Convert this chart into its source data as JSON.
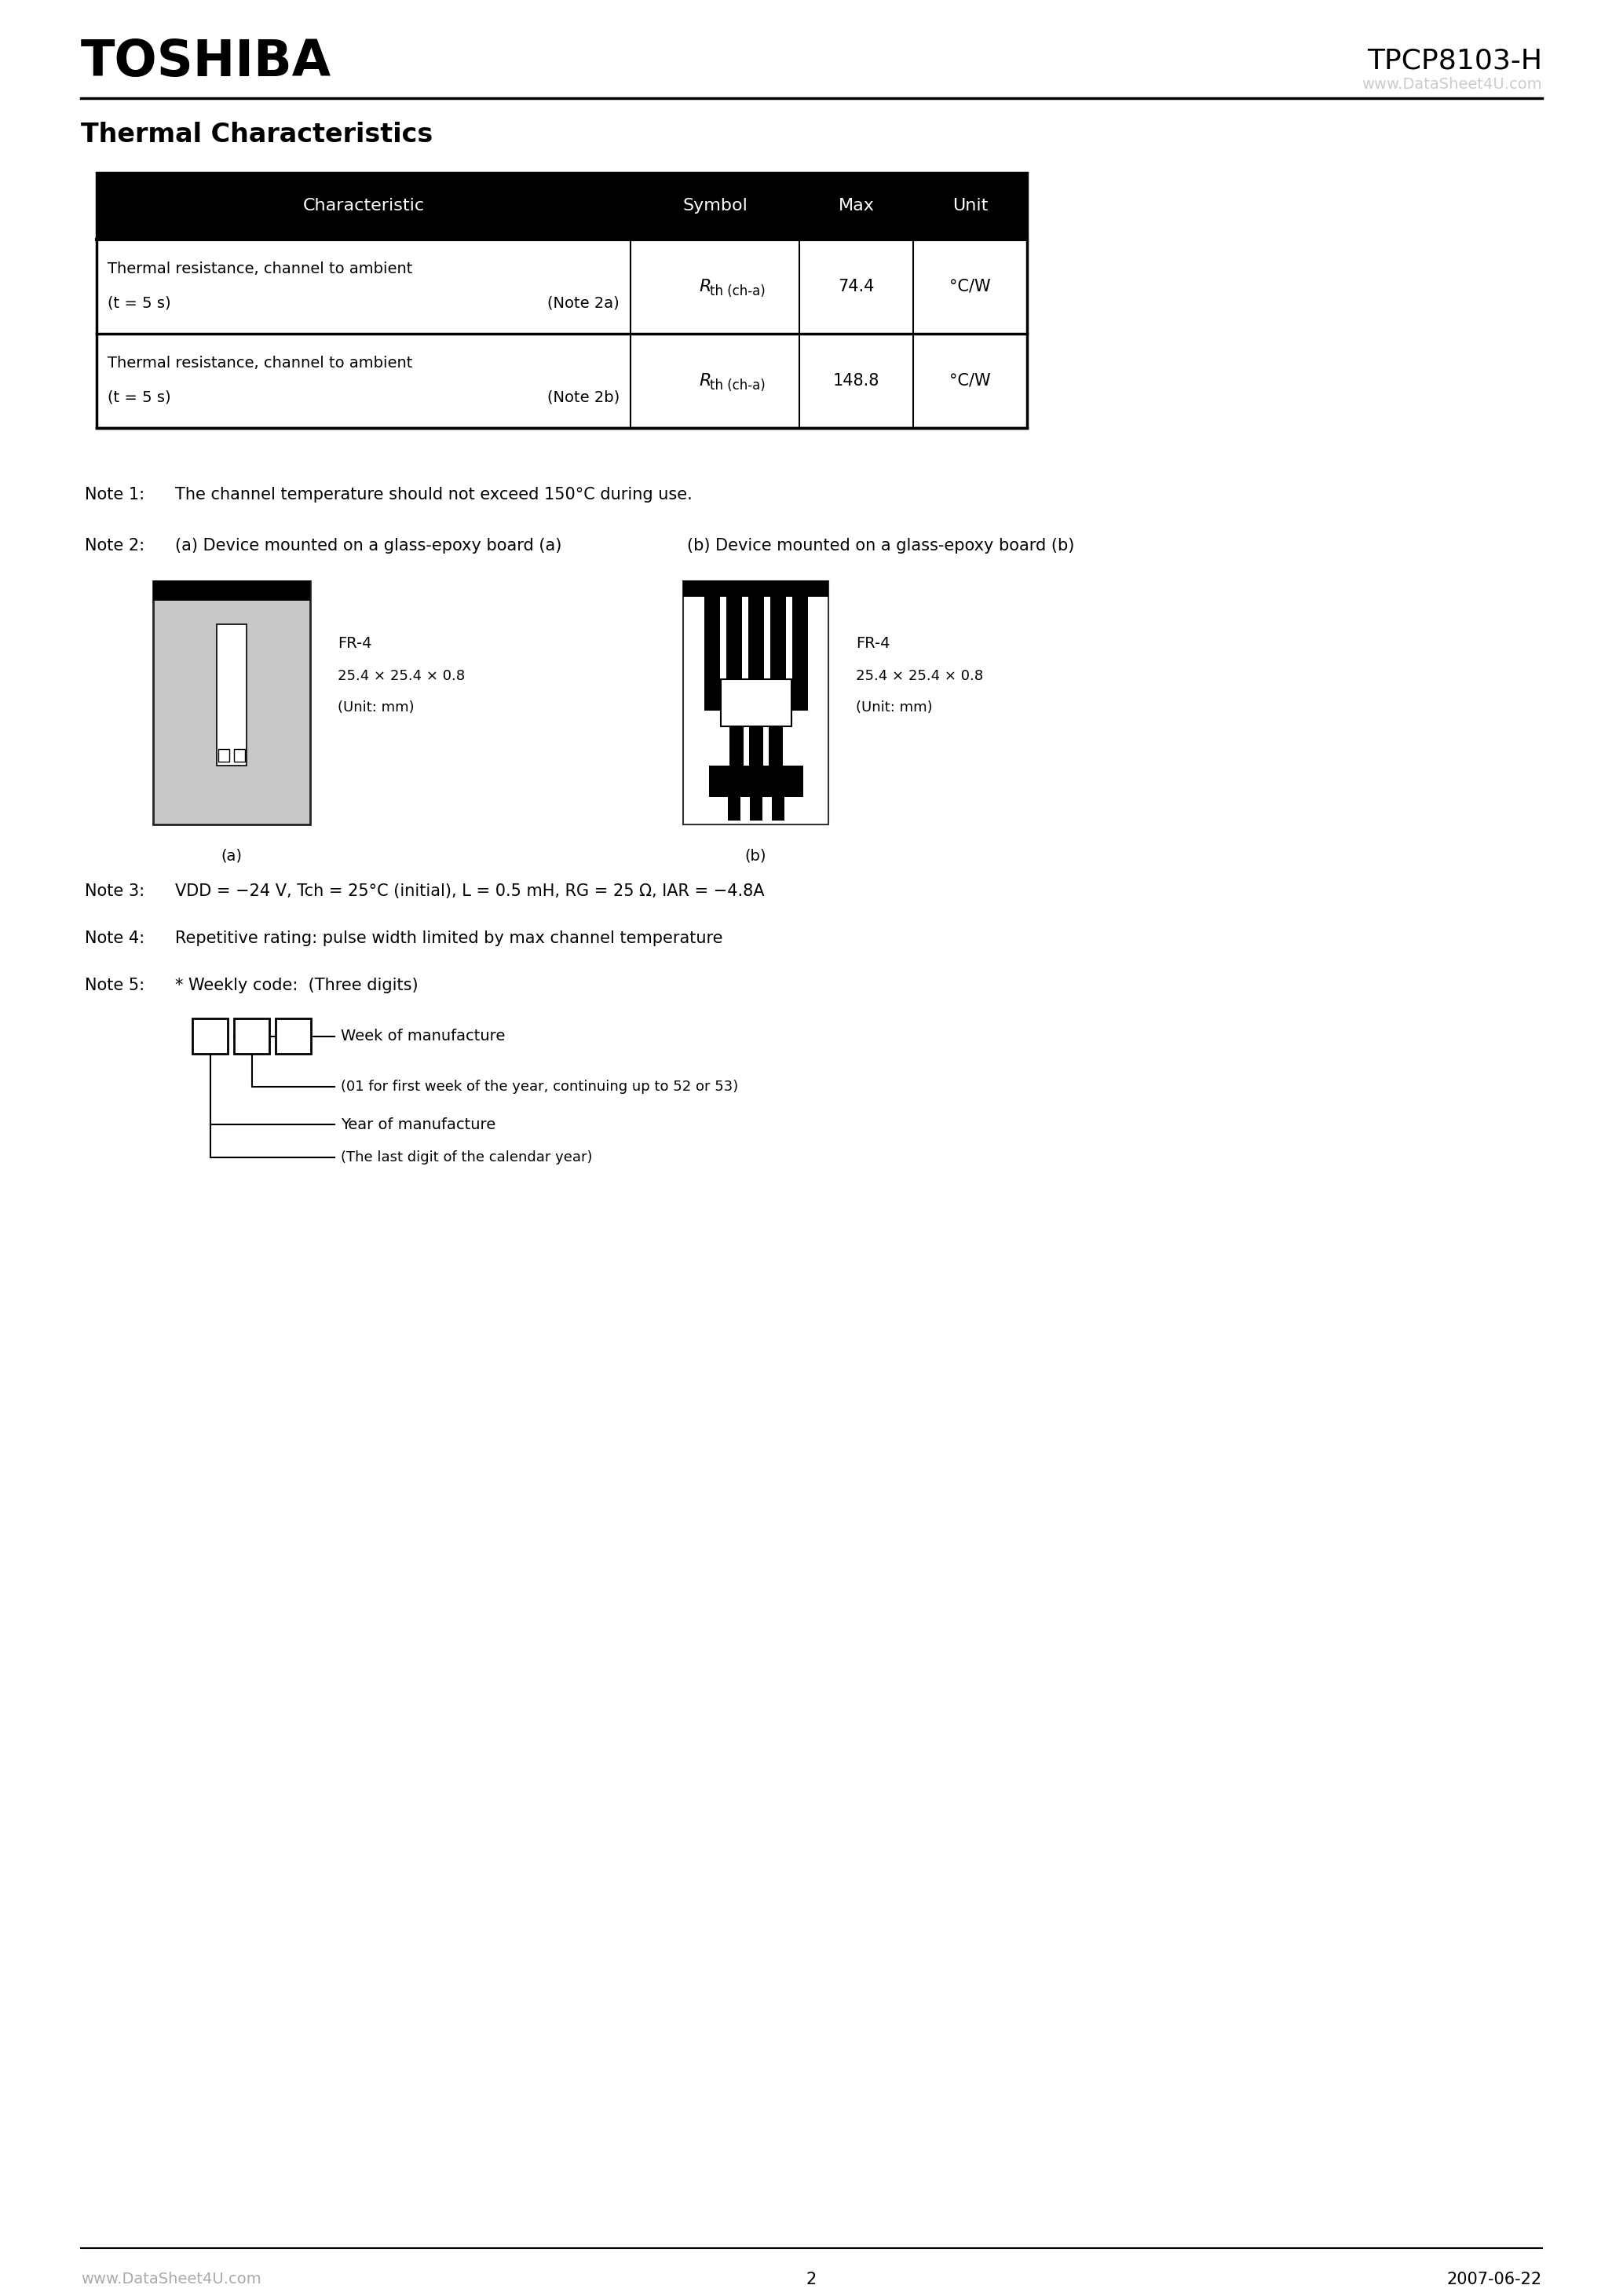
{
  "bg": "#ffffff",
  "header_toshiba": "TOSHIBA",
  "header_product": "TPCP8103-H",
  "header_watermark": "www.DataSheet4U.com",
  "section_title": "Thermal Characteristics",
  "table_headers": [
    "Characteristic",
    "Symbol",
    "Max",
    "Unit"
  ],
  "table_rows": [
    {
      "char1": "Thermal resistance, channel to ambient",
      "char2": "(t = 5 s)",
      "note": "(Note 2a)",
      "max": "74.4",
      "unit": "°C/W"
    },
    {
      "char1": "Thermal resistance, channel to ambient",
      "char2": "(t = 5 s)",
      "note": "(Note 2b)",
      "max": "148.8",
      "unit": "°C/W"
    }
  ],
  "note1_label": "Note 1:",
  "note1": "The channel temperature should not exceed 150°C during use.",
  "note2_label": "Note 2:",
  "note2a": "(a) Device mounted on a glass-epoxy board (a)",
  "note2b": "(b) Device mounted on a glass-epoxy board (b)",
  "fr4_text": "FR-4",
  "fr4_dim": "25.4 × 25.4 × 0.8",
  "fr4_unit": "(Unit: mm)",
  "note3_label": "Note 3:",
  "note3_plain": "VDD = -24 V, Tch = 25°C (initial), L = 0.5 mH, RG = 25 Ω, IAR = -4.8A",
  "note4_label": "Note 4:",
  "note4": "Repetitive rating: pulse width limited by max channel temperature",
  "note5_label": "Note 5:",
  "note5": "* Weekly code:  (Three digits)",
  "week_label": "Week of manufacture",
  "week_sub": "(01 for first week of the year, continuing up to 52 or 53)",
  "year_label": "Year of manufacture",
  "year_sub": "(The last digit of the calendar year)",
  "footer_left": "www.DataSheet4U.com",
  "footer_center": "2",
  "footer_right": "2007-06-22"
}
